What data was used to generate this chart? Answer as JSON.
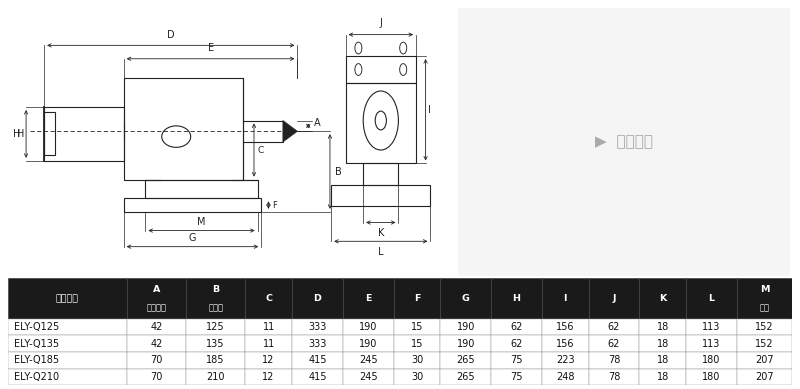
{
  "bg_color": "#ffffff",
  "table_header_bg": "#1a1a1a",
  "table_header_fg": "#ffffff",
  "col_headers_line1": [
    "规格型号",
    "A",
    "B",
    "C",
    "D",
    "E",
    "F",
    "G",
    "H",
    "I",
    "J",
    "K",
    "L",
    "M"
  ],
  "col_headers_line2": [
    "",
    "顶针行程",
    "中心高",
    "",
    "",
    "",
    "",
    "",
    "",
    "",
    "",
    "",
    "",
    "孔距"
  ],
  "rows": [
    [
      "ELY-Q125",
      "42",
      "125",
      "11",
      "333",
      "190",
      "15",
      "190",
      "62",
      "156",
      "62",
      "18",
      "113",
      "152"
    ],
    [
      "ELY-Q135",
      "42",
      "135",
      "11",
      "333",
      "190",
      "15",
      "190",
      "62",
      "156",
      "62",
      "18",
      "113",
      "152"
    ],
    [
      "ELY-Q185",
      "70",
      "185",
      "12",
      "415",
      "245",
      "30",
      "265",
      "75",
      "223",
      "78",
      "18",
      "180",
      "207"
    ],
    [
      "ELY-Q210",
      "70",
      "210",
      "12",
      "415",
      "245",
      "30",
      "265",
      "75",
      "248",
      "78",
      "18",
      "180",
      "207"
    ]
  ],
  "tc": "#222222",
  "lw": 0.8
}
